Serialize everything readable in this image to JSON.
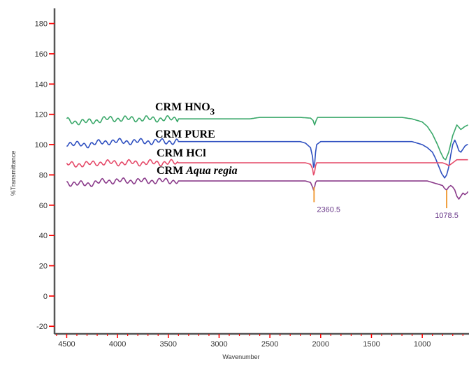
{
  "chart_data": {
    "type": "line",
    "xlabel": "Wavenumber",
    "ylabel": "%Transmittance",
    "xlim": [
      4620,
      540
    ],
    "ylim": [
      -25,
      190
    ],
    "x_reversed": true,
    "x_ticks": [
      4500,
      4000,
      3500,
      3000,
      2500,
      2000,
      1500,
      1000
    ],
    "y_ticks": [
      -20,
      0,
      20,
      40,
      60,
      80,
      100,
      120,
      140,
      160,
      180
    ],
    "grid": false,
    "legend": "none",
    "series": [
      {
        "name": "CRM HNO3",
        "label_parts": [
          {
            "text": "CRM HNO",
            "italic": false
          },
          {
            "text": "3",
            "subscript": true
          }
        ],
        "color": "#3aa86a",
        "x": [
          4500,
          4400,
          4300,
          4200,
          4100,
          4000,
          3900,
          3800,
          3700,
          3600,
          3500,
          3400,
          3300,
          3200,
          3100,
          3000,
          2900,
          2800,
          2700,
          2600,
          2500,
          2400,
          2300,
          2200,
          2100,
          2075,
          2060,
          2045,
          2030,
          2000,
          1900,
          1800,
          1700,
          1600,
          1500,
          1400,
          1300,
          1200,
          1100,
          1050,
          1000,
          950,
          900,
          850,
          820,
          790,
          770,
          740,
          700,
          660,
          620,
          580,
          550
        ],
        "y": [
          116,
          115,
          115,
          116,
          117,
          117,
          117,
          117,
          117,
          117,
          117,
          117,
          117,
          117,
          117,
          117,
          117,
          117,
          117,
          118,
          118,
          118,
          118,
          118,
          117.5,
          116,
          113,
          116,
          118,
          118,
          118,
          118,
          118,
          118,
          118,
          118,
          118,
          118,
          117,
          116,
          115,
          112,
          107,
          100,
          95,
          91,
          90,
          95,
          106,
          113,
          110,
          112,
          113
        ]
      },
      {
        "name": "CRM PURE",
        "label_parts": [
          {
            "text": "CRM PURE",
            "italic": false
          }
        ],
        "color": "#2f50c0",
        "x": [
          4500,
          4400,
          4300,
          4200,
          4100,
          4000,
          3900,
          3800,
          3700,
          3600,
          3500,
          3400,
          3300,
          3200,
          3100,
          3000,
          2900,
          2800,
          2700,
          2600,
          2500,
          2400,
          2300,
          2200,
          2150,
          2100,
          2080,
          2070,
          2060,
          2050,
          2040,
          2000,
          1900,
          1800,
          1700,
          1600,
          1500,
          1400,
          1300,
          1200,
          1100,
          1050,
          1000,
          950,
          900,
          870,
          840,
          810,
          780,
          760,
          740,
          720,
          700,
          680,
          660,
          640,
          620,
          600,
          580,
          560,
          550
        ],
        "y": [
          101,
          100,
          100,
          101,
          102,
          102,
          102,
          102,
          102,
          102,
          102,
          102,
          102,
          102,
          102,
          102,
          102,
          102,
          102,
          102,
          102,
          102,
          102,
          102,
          101,
          98,
          92,
          85,
          87,
          95,
          100,
          102,
          102,
          102,
          102,
          102,
          102,
          102,
          102,
          102,
          102,
          101,
          100,
          98,
          95,
          91,
          86,
          81,
          78,
          80,
          85,
          93,
          100,
          103,
          100,
          96,
          95,
          97,
          99,
          100,
          100
        ]
      },
      {
        "name": "CRM HCl",
        "label_parts": [
          {
            "text": "CRM HCl",
            "italic": false
          }
        ],
        "color": "#e54b6a",
        "x": [
          4500,
          4400,
          4300,
          4200,
          4100,
          4000,
          3900,
          3800,
          3700,
          3600,
          3500,
          3400,
          3300,
          3200,
          3100,
          3000,
          2900,
          2800,
          2700,
          2600,
          2500,
          2400,
          2300,
          2200,
          2150,
          2100,
          2080,
          2070,
          2060,
          2050,
          2040,
          2000,
          1900,
          1800,
          1700,
          1600,
          1500,
          1400,
          1300,
          1200,
          1100,
          1050,
          1000,
          950,
          900,
          850,
          800,
          760,
          740,
          720,
          700,
          680,
          660,
          640,
          620,
          600,
          580,
          560,
          550
        ],
        "y": [
          87,
          87,
          87,
          88,
          88,
          88,
          88,
          88,
          88,
          88,
          88,
          88,
          88,
          88,
          88,
          88,
          88,
          88,
          88,
          88,
          88,
          88,
          88,
          88,
          88,
          87,
          84,
          80,
          82,
          86,
          88,
          88,
          88,
          88,
          88,
          88,
          88,
          88,
          88,
          88,
          88,
          88,
          88,
          88,
          88,
          88,
          88,
          87,
          86,
          87,
          88,
          89,
          90,
          90,
          90,
          90,
          90,
          90,
          90
        ]
      },
      {
        "name": "CRM Aqua regia",
        "label_parts": [
          {
            "text": "CRM ",
            "italic": false
          },
          {
            "text": "Aqua regia",
            "italic": true
          }
        ],
        "color": "#8a3a8a",
        "x": [
          4500,
          4400,
          4300,
          4200,
          4100,
          4000,
          3900,
          3800,
          3700,
          3600,
          3500,
          3400,
          3300,
          3200,
          3100,
          3000,
          2900,
          2800,
          2700,
          2600,
          2500,
          2400,
          2300,
          2200,
          2150,
          2100,
          2080,
          2070,
          2060,
          2050,
          2040,
          2000,
          1900,
          1800,
          1700,
          1600,
          1500,
          1400,
          1300,
          1200,
          1100,
          1050,
          1000,
          950,
          900,
          850,
          800,
          780,
          760,
          740,
          720,
          700,
          680,
          660,
          640,
          620,
          600,
          580,
          560,
          550
        ],
        "y": [
          75,
          74,
          74,
          75,
          76,
          76,
          76,
          76,
          76,
          76,
          76,
          76,
          76,
          76,
          76,
          76,
          76,
          76,
          76,
          76,
          76,
          76,
          76,
          76,
          76,
          75,
          72,
          70,
          72,
          75,
          76,
          76,
          76,
          76,
          76,
          76,
          76,
          76,
          76,
          76,
          76,
          76,
          76,
          76,
          75,
          74,
          73,
          71,
          70,
          72,
          73,
          72,
          70,
          66,
          64,
          66,
          68,
          67,
          68,
          69
        ]
      }
    ],
    "annotations": [
      {
        "text": "2360.5",
        "x": 2065,
        "line_from": 72,
        "line_to": 62
      },
      {
        "text": "1078.5",
        "x": 760,
        "line_from": 70,
        "line_to": 58
      }
    ],
    "colors": {
      "axis": "#555555",
      "tick": "#ff0000",
      "peak_marker": "#f0a040",
      "annotation_text": "#6a3a8a"
    }
  }
}
